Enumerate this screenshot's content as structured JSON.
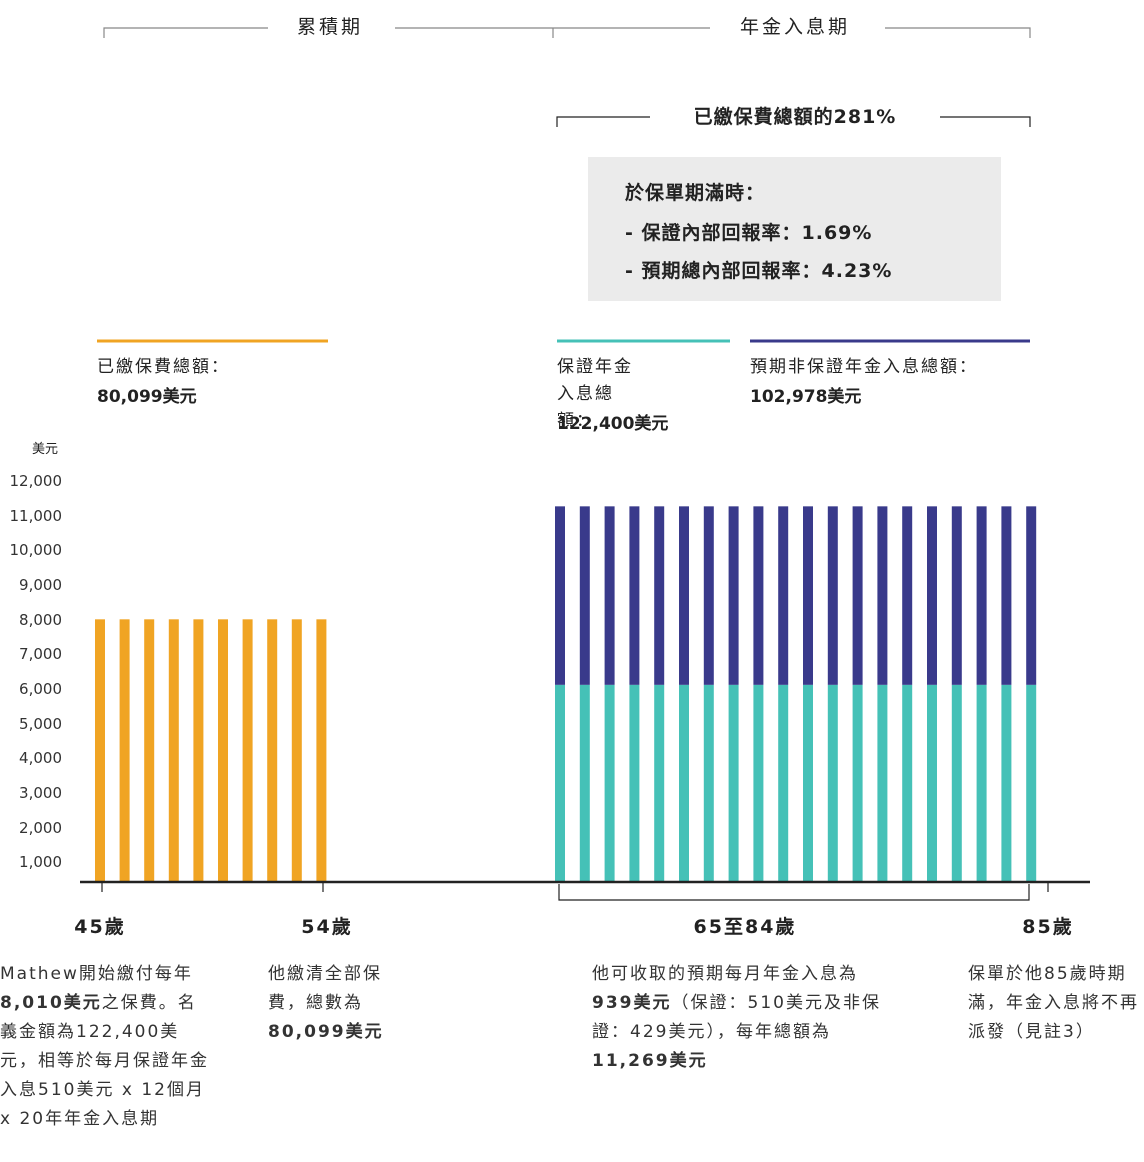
{
  "chart_data": {
    "type": "bar",
    "periods": [
      "累積期",
      "年金入息期"
    ],
    "return_title": "已繳保費總額的281%",
    "box": [
      "於保單期滿時：",
      "- 保證內部回報率：1.69%",
      "- 預期總內部回報率：4.23%"
    ],
    "y_unit": "美元",
    "ylim": [
      0,
      12000
    ],
    "yticks": [
      {
        "value": 1000,
        "label": "1,000"
      },
      {
        "value": 2000,
        "label": "2,000"
      },
      {
        "value": 3000,
        "label": "3,000"
      },
      {
        "value": 4000,
        "label": "4,000"
      },
      {
        "value": 5000,
        "label": "5,000"
      },
      {
        "value": 6000,
        "label": "6,000"
      },
      {
        "value": 7000,
        "label": "7,000"
      },
      {
        "value": 8000,
        "label": "8,000"
      },
      {
        "value": 9000,
        "label": "9,000"
      },
      {
        "value": 10000,
        "label": "10,000"
      },
      {
        "value": 11000,
        "label": "11,000"
      },
      {
        "value": 12000,
        "label": "12,000"
      }
    ],
    "categories": [
      null,
      null,
      null,
      null,
      null,
      null,
      null,
      null,
      null,
      null,
      null,
      null,
      null,
      null,
      null,
      null,
      null,
      null,
      null,
      null,
      null,
      null,
      null,
      null,
      null,
      null,
      null,
      null,
      null,
      null
    ],
    "age_labels": [
      "45歲",
      "54歲",
      "65至84歲",
      "85歲"
    ],
    "series": [
      {
        "name": "已繳保費總額：",
        "total": "80,099美元",
        "color": "#f0a423",
        "values": [
          8010,
          8010,
          8010,
          8010,
          8010,
          8010,
          8010,
          8010,
          8010,
          8010,
          null,
          null,
          null,
          null,
          null,
          null,
          null,
          null,
          null,
          null,
          null,
          null,
          null,
          null,
          null,
          null,
          null,
          null,
          null,
          null
        ]
      },
      {
        "name": "保證年金入息總額：",
        "total": "122,400美元",
        "color": "#45c1b7",
        "values": [
          null,
          null,
          null,
          null,
          null,
          null,
          null,
          null,
          null,
          null,
          6120,
          6120,
          6120,
          6120,
          6120,
          6120,
          6120,
          6120,
          6120,
          6120,
          6120,
          6120,
          6120,
          6120,
          6120,
          6120,
          6120,
          6120,
          6120,
          6120
        ]
      },
      {
        "name": "預期非保證年金入息總額：",
        "total": "102,978美元",
        "color": "#393a8b",
        "values": [
          null,
          null,
          null,
          null,
          null,
          null,
          null,
          null,
          null,
          null,
          5149,
          5149,
          5149,
          5149,
          5149,
          5149,
          5149,
          5149,
          5149,
          5149,
          5149,
          5149,
          5149,
          5149,
          5149,
          5149,
          5149,
          5149,
          5149,
          5149
        ]
      }
    ],
    "notes": [
      [
        "Mathew開始繳付每年",
        "8,010美元",
        "之保費。名義金額為122,400美元，相等於每月保證年金入息510美元 x 12個月 x 20年年金入息期"
      ],
      [
        "他繳清全部保費，總數為",
        "80,099美元"
      ],
      [
        "他可收取的預期每月年金入息為",
        "939美元",
        "（保證：510美元及非保證：429美元），每年總額為",
        "11,269美元"
      ],
      [
        "保單於他85歲時期滿，年金入息將不再派發（見註3）"
      ]
    ]
  }
}
